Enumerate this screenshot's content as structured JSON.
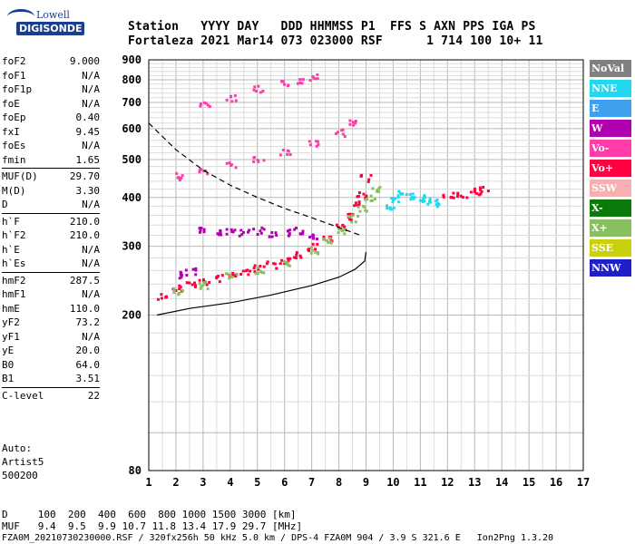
{
  "logo": {
    "line1": "Lowell",
    "line2": "DIGISONDE"
  },
  "header": {
    "line1": "Station   YYYY DAY   DDD HHMMSS P1  FFS S AXN PPS IGA PS",
    "line2": "Fortaleza 2021 Mar14 073 023000 RSF      1 714 100 10+ 11"
  },
  "params": [
    {
      "group": [
        {
          "name": "foF2",
          "value": "9.000"
        },
        {
          "name": "foF1",
          "value": "N/A"
        },
        {
          "name": "foF1p",
          "value": "N/A"
        },
        {
          "name": "foE",
          "value": "N/A"
        },
        {
          "name": "foEp",
          "value": "0.40"
        },
        {
          "name": "fxI",
          "value": "9.45"
        },
        {
          "name": "foEs",
          "value": "N/A"
        },
        {
          "name": "fmin",
          "value": "1.65"
        }
      ]
    },
    {
      "group": [
        {
          "name": "MUF(D)",
          "value": "29.70"
        },
        {
          "name": "M(D)",
          "value": "3.30"
        },
        {
          "name": "D",
          "value": "N/A"
        }
      ]
    },
    {
      "group": [
        {
          "name": "h`F",
          "value": "210.0"
        },
        {
          "name": "h`F2",
          "value": "210.0"
        },
        {
          "name": "h`E",
          "value": "N/A"
        },
        {
          "name": "h`Es",
          "value": "N/A"
        }
      ]
    },
    {
      "group": [
        {
          "name": "hmF2",
          "value": "287.5"
        },
        {
          "name": "hmF1",
          "value": "N/A"
        },
        {
          "name": "hmE",
          "value": "110.0"
        },
        {
          "name": "yF2",
          "value": "73.2"
        },
        {
          "name": "yF1",
          "value": "N/A"
        },
        {
          "name": "yE",
          "value": "20.0"
        },
        {
          "name": "B0",
          "value": "64.0"
        },
        {
          "name": "B1",
          "value": "3.51"
        }
      ]
    },
    {
      "group": [
        {
          "name": "C-level",
          "value": "22"
        }
      ]
    }
  ],
  "auto": {
    "line1": "Auto:",
    "line2": "Artist5",
    "line3": "500200"
  },
  "legend": [
    {
      "label": "NoVal",
      "color": "#808080"
    },
    {
      "label": "NNE",
      "color": "#22d8f0"
    },
    {
      "label": "E",
      "color": "#3ea0ee"
    },
    {
      "label": "W",
      "color": "#b000b0"
    },
    {
      "label": "Vo-",
      "color": "#ff3ca8"
    },
    {
      "label": "Vo+",
      "color": "#ff0040"
    },
    {
      "label": "SSW",
      "color": "#f6b0b0"
    },
    {
      "label": "X-",
      "color": "#0a7a0a"
    },
    {
      "label": "X+",
      "color": "#88c060"
    },
    {
      "label": "SSE",
      "color": "#c8d010"
    },
    {
      "label": "NNW",
      "color": "#2020c8"
    }
  ],
  "footer": {
    "d_line": "D     100  200  400  600  800 1000 1500 3000 [km]",
    "muf_line": "MUF   9.4  9.5  9.9 10.7 11.8 13.4 17.9 29.7 [MHz]",
    "info_line": "FZA0M_20210730230000.RSF / 320fx256h 50 kHz 5.0 km / DPS-4 FZA0M 904 / 3.9 S 321.6 E   Ion2Png 1.3.20"
  },
  "chart_data": {
    "type": "scatter",
    "x_ticks": [
      "1",
      "2",
      "3",
      "4",
      "5",
      "6",
      "7",
      "8",
      "9",
      "10",
      "11",
      "12",
      "13",
      "14",
      "15",
      "16",
      "17"
    ],
    "y_ticks": [
      "80",
      "200",
      "300",
      "400",
      "500",
      "600",
      "700",
      "800",
      "900"
    ],
    "xlim": [
      1,
      17
    ],
    "ylim": [
      80,
      900
    ],
    "y_scale": "log",
    "grid": true,
    "legend_position": "right",
    "series": [
      {
        "color": "#ff0040",
        "note": "trace O main",
        "x": [
          1.5,
          2.0,
          2.5,
          3.0,
          3.5,
          4.0,
          4.5,
          5.0,
          5.5,
          6.0,
          6.5,
          7.0,
          7.5,
          8.0,
          8.3,
          8.6,
          8.8,
          8.95
        ],
        "y": [
          225,
          235,
          242,
          245,
          250,
          255,
          260,
          265,
          270,
          278,
          288,
          300,
          318,
          340,
          360,
          385,
          410,
          450
        ]
      },
      {
        "color": "#88c060",
        "x": [
          2.0,
          3.0,
          4.0,
          5.0,
          6.0,
          7.0,
          7.5,
          8.0,
          8.5,
          8.8,
          9.1,
          9.3
        ],
        "y": [
          232,
          240,
          252,
          262,
          275,
          295,
          312,
          330,
          355,
          375,
          400,
          420
        ]
      },
      {
        "color": "#b000b0",
        "x": [
          2.0,
          2.5,
          3.0,
          3.5,
          4.0,
          4.5,
          5.0,
          5.5,
          6.0,
          6.5,
          7.0
        ],
        "y": [
          255,
          260,
          330,
          330,
          328,
          326,
          330,
          325,
          328,
          330,
          320
        ]
      },
      {
        "color": "#22d8f0",
        "x": [
          9.8,
          10.0,
          10.3,
          10.6,
          10.9,
          11.2,
          11.5
        ],
        "y": [
          380,
          395,
          410,
          405,
          400,
          395,
          390
        ]
      },
      {
        "color": "#ff3ca8",
        "x": [
          2.0,
          3.0,
          4.0,
          5.0,
          6.0,
          7.0,
          8.0,
          8.5
        ],
        "y": [
          455,
          470,
          490,
          505,
          525,
          550,
          590,
          630
        ]
      },
      {
        "color": "#ff3ca8",
        "x": [
          3.0,
          4.0,
          5.0,
          6.0,
          6.5,
          7.0
        ],
        "y": [
          690,
          720,
          760,
          790,
          805,
          820
        ]
      },
      {
        "color": "#ff0040",
        "x": [
          12.0,
          12.5,
          13.0,
          13.3
        ],
        "y": [
          405,
          410,
          415,
          420
        ]
      }
    ],
    "lines": [
      {
        "style": "dashed",
        "x": [
          1.0,
          2.0,
          3.0,
          4.0,
          5.0,
          6.0,
          7.0,
          8.0,
          8.8
        ],
        "y": [
          620,
          530,
          470,
          430,
          400,
          375,
          355,
          335,
          320
        ]
      },
      {
        "style": "solid",
        "x": [
          1.3,
          2.5,
          4.0,
          5.5,
          7.0,
          8.0,
          8.6,
          8.95,
          9.0
        ],
        "y": [
          200,
          208,
          215,
          225,
          238,
          250,
          262,
          275,
          290
        ]
      }
    ]
  }
}
